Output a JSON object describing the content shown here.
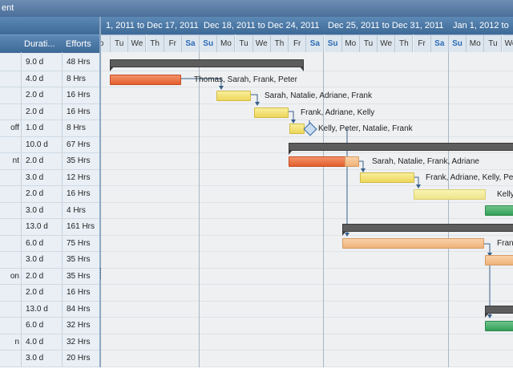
{
  "window": {
    "title": "ent"
  },
  "left_grid": {
    "columns": {
      "duration": "Durati...",
      "efforts": "Efforts"
    },
    "rows": [
      {
        "name": "",
        "duration": "9.0 d",
        "efforts": "48 Hrs"
      },
      {
        "name": "",
        "duration": "4.0 d",
        "efforts": "8 Hrs"
      },
      {
        "name": "",
        "duration": "2.0 d",
        "efforts": "16 Hrs"
      },
      {
        "name": "",
        "duration": "2.0 d",
        "efforts": "16 Hrs"
      },
      {
        "name": "off",
        "duration": "1.0 d",
        "efforts": "8 Hrs"
      },
      {
        "name": "",
        "duration": "10.0 d",
        "efforts": "67 Hrs"
      },
      {
        "name": "nt",
        "duration": "2.0 d",
        "efforts": "35 Hrs"
      },
      {
        "name": "",
        "duration": "3.0 d",
        "efforts": "12 Hrs"
      },
      {
        "name": "",
        "duration": "2.0 d",
        "efforts": "16 Hrs"
      },
      {
        "name": "",
        "duration": "3.0 d",
        "efforts": "4 Hrs"
      },
      {
        "name": "",
        "duration": "13.0 d",
        "efforts": "161 Hrs"
      },
      {
        "name": "",
        "duration": "6.0 d",
        "efforts": "75 Hrs"
      },
      {
        "name": "",
        "duration": "3.0 d",
        "efforts": "35 Hrs"
      },
      {
        "name": "on",
        "duration": "2.0 d",
        "efforts": "35 Hrs"
      },
      {
        "name": "",
        "duration": "2.0 d",
        "efforts": "16 Hrs"
      },
      {
        "name": "",
        "duration": "13.0 d",
        "efforts": "84 Hrs"
      },
      {
        "name": "",
        "duration": "6.0 d",
        "efforts": "32 Hrs"
      },
      {
        "name": "n",
        "duration": "4.0 d",
        "efforts": "32 Hrs"
      },
      {
        "name": "",
        "duration": "3.0 d",
        "efforts": "20 Hrs"
      }
    ]
  },
  "timeline": {
    "weeks": [
      {
        "label": "1, 2011 to Dec 17, 2011"
      },
      {
        "label": "Dec 18, 2011 to Dec 24, 2011"
      },
      {
        "label": "Dec 25, 2011 to Dec 31, 2011"
      },
      {
        "label": "Jan 1, 2012 to"
      }
    ],
    "days": [
      "o",
      "Tu",
      "We",
      "Th",
      "Fr",
      "Sa",
      "Su",
      "Mo",
      "Tu",
      "We",
      "Th",
      "Fr",
      "Sa",
      "Su",
      "Mo",
      "Tu",
      "We",
      "Th",
      "Fr",
      "Sa",
      "Su",
      "Mo",
      "Tu",
      "We"
    ],
    "resources": {
      "r1": "Thomas, Sarah, Frank, Peter",
      "r2": "Sarah, Natalie, Adriane, Frank",
      "r3": "Frank, Adriane, Kelly",
      "r4": "Kelly, Peter, Natalie, Frank",
      "r5": "Sarah, Natalie, Frank, Adriane",
      "r6": "Frank, Adriane, Kelly, Pet",
      "r7": "Kelly",
      "r8": "Fran"
    }
  },
  "colors": {
    "header_blue": "#4b76a3",
    "task_orange": "#e45f2e",
    "task_yellow": "#eed75b",
    "task_peach": "#efb27a",
    "task_green": "#34a05a",
    "summary_gray": "#5d5d5d"
  }
}
